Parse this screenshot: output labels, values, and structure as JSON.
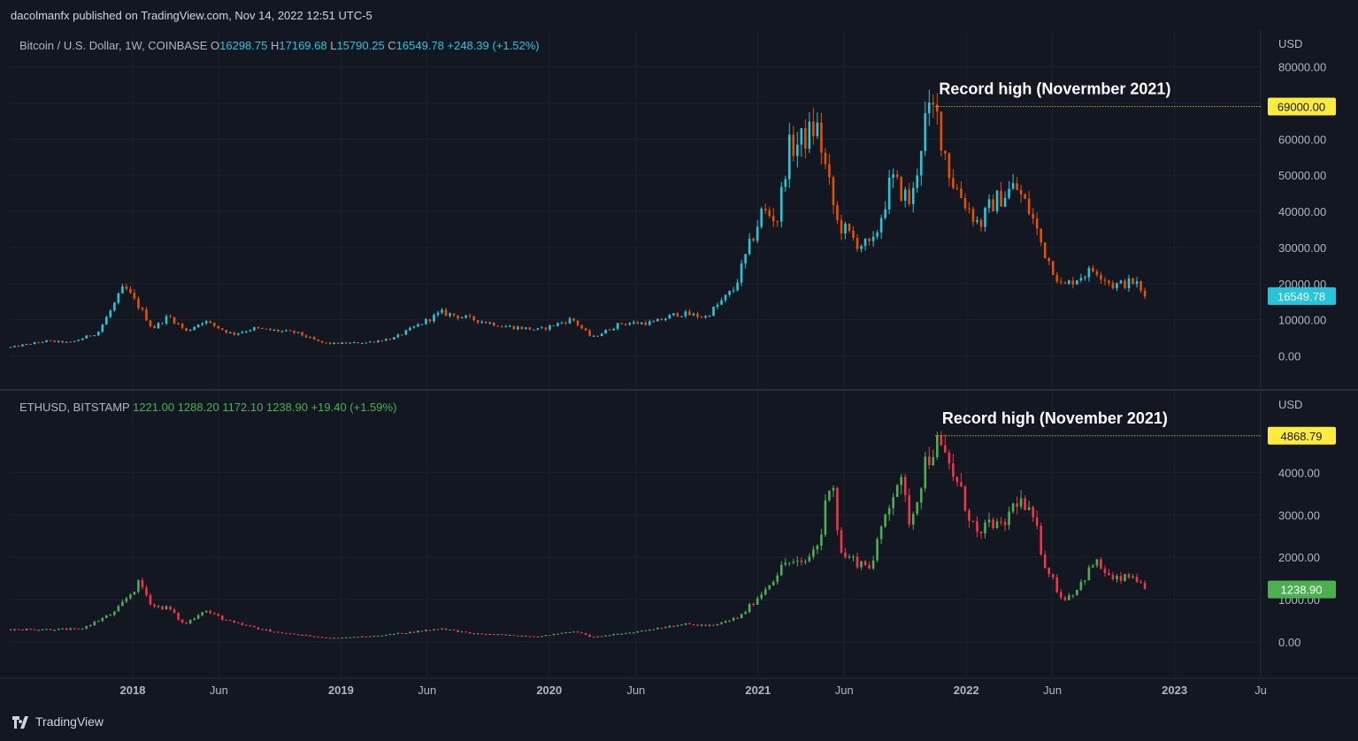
{
  "header": {
    "publisher_text": "dacolmanfx published on TradingView.com, Nov 14, 2022 12:51 UTC-5"
  },
  "footer": {
    "brand": "TradingView"
  },
  "colors": {
    "background": "#131722",
    "btc_up": "#26c6da",
    "btc_down": "#e65100",
    "eth_up": "#4caf50",
    "eth_down": "#f23645",
    "record_label_bg": "#ffeb3b",
    "axis_text": "#b2b5be"
  },
  "chart_data": [
    {
      "type": "candlestick",
      "title": "Bitcoin / U.S. Dollar, 1W, COINBASE",
      "ohlc_legend": {
        "o_prefix": "O",
        "open": "16298.75",
        "h_prefix": "H",
        "high": "17169.68",
        "l_prefix": "L",
        "low": "15790.25",
        "c_prefix": "C",
        "close": "16549.78",
        "change": "+248.39 (+1.52%)"
      },
      "currency": "USD",
      "y_ticks": [
        "80000.00",
        "70000.00",
        "60000.00",
        "50000.00",
        "40000.00",
        "30000.00",
        "20000.00",
        "10000.00",
        "0.00"
      ],
      "y_tick_values": [
        80000,
        70000,
        60000,
        50000,
        40000,
        30000,
        20000,
        10000,
        0
      ],
      "ylim": [
        0,
        80000
      ],
      "record_high": {
        "value": 69000,
        "label": "69000.00",
        "annotation": "Record high (Novermber 2021)",
        "date": "2021-11-08"
      },
      "last_price": {
        "value": 16549.78,
        "label": "16549.78"
      },
      "series": [
        {
          "date": "2017-06-01",
          "close": 2400
        },
        {
          "date": "2017-08-01",
          "close": 4100
        },
        {
          "date": "2017-09-15",
          "close": 3700
        },
        {
          "date": "2017-11-01",
          "close": 6500
        },
        {
          "date": "2017-12-17",
          "close": 19000
        },
        {
          "date": "2018-01-15",
          "close": 13000
        },
        {
          "date": "2018-02-05",
          "close": 7500
        },
        {
          "date": "2018-03-05",
          "close": 11000
        },
        {
          "date": "2018-04-05",
          "close": 6800
        },
        {
          "date": "2018-05-05",
          "close": 9700
        },
        {
          "date": "2018-06-25",
          "close": 6000
        },
        {
          "date": "2018-08-01",
          "close": 7600
        },
        {
          "date": "2018-10-15",
          "close": 6400
        },
        {
          "date": "2018-11-26",
          "close": 3700
        },
        {
          "date": "2018-12-15",
          "close": 3400
        },
        {
          "date": "2019-02-15",
          "close": 3700
        },
        {
          "date": "2019-04-05",
          "close": 5000
        },
        {
          "date": "2019-06-26",
          "close": 12000
        },
        {
          "date": "2019-08-15",
          "close": 10300
        },
        {
          "date": "2019-10-15",
          "close": 8200
        },
        {
          "date": "2019-12-15",
          "close": 7200
        },
        {
          "date": "2020-02-10",
          "close": 10200
        },
        {
          "date": "2020-03-16",
          "close": 5000
        },
        {
          "date": "2020-05-05",
          "close": 9000
        },
        {
          "date": "2020-07-01",
          "close": 9200
        },
        {
          "date": "2020-08-15",
          "close": 11800
        },
        {
          "date": "2020-10-01",
          "close": 10800
        },
        {
          "date": "2020-11-20",
          "close": 18500
        },
        {
          "date": "2021-01-08",
          "close": 40000
        },
        {
          "date": "2021-02-05",
          "close": 38000
        },
        {
          "date": "2021-02-22",
          "close": 57000
        },
        {
          "date": "2021-03-15",
          "close": 59000
        },
        {
          "date": "2021-04-14",
          "close": 63500
        },
        {
          "date": "2021-05-19",
          "close": 37000
        },
        {
          "date": "2021-06-22",
          "close": 31500
        },
        {
          "date": "2021-07-20",
          "close": 30000
        },
        {
          "date": "2021-08-23",
          "close": 49000
        },
        {
          "date": "2021-09-27",
          "close": 42000
        },
        {
          "date": "2021-10-20",
          "close": 65000
        },
        {
          "date": "2021-11-08",
          "close": 68000
        },
        {
          "date": "2021-12-05",
          "close": 49000
        },
        {
          "date": "2022-01-24",
          "close": 36000
        },
        {
          "date": "2022-02-14",
          "close": 42000
        },
        {
          "date": "2022-03-28",
          "close": 47000
        },
        {
          "date": "2022-04-25",
          "close": 39000
        },
        {
          "date": "2022-05-16",
          "close": 29500
        },
        {
          "date": "2022-06-18",
          "close": 19000
        },
        {
          "date": "2022-07-18",
          "close": 22000
        },
        {
          "date": "2022-08-15",
          "close": 24000
        },
        {
          "date": "2022-09-15",
          "close": 19500
        },
        {
          "date": "2022-10-25",
          "close": 20500
        },
        {
          "date": "2022-11-07",
          "close": 16500
        },
        {
          "date": "2022-11-14",
          "close": 16549
        }
      ]
    },
    {
      "type": "candlestick",
      "title": "ETHUSD, BITSTAMP",
      "ohlc_legend": {
        "open": "1221.00",
        "high": "1288.20",
        "low": "1172.10",
        "close": "1238.90",
        "change": "+19.40 (+1.59%)"
      },
      "currency": "USD",
      "y_ticks": [
        "4000.00",
        "3000.00",
        "2000.00",
        "1000.00",
        "0.00"
      ],
      "y_tick_values": [
        4000,
        3000,
        2000,
        1000,
        0
      ],
      "ylim": [
        -500,
        5000
      ],
      "record_high": {
        "value": 4868.79,
        "label": "4868.79",
        "annotation": "Record high (November 2021)",
        "date": "2021-11-08"
      },
      "last_price": {
        "value": 1238.9,
        "label": "1238.90"
      },
      "series": [
        {
          "date": "2017-06-01",
          "close": 300
        },
        {
          "date": "2017-08-01",
          "close": 300
        },
        {
          "date": "2017-10-01",
          "close": 300
        },
        {
          "date": "2017-12-01",
          "close": 700
        },
        {
          "date": "2018-01-13",
          "close": 1400
        },
        {
          "date": "2018-02-05",
          "close": 850
        },
        {
          "date": "2018-03-05",
          "close": 800
        },
        {
          "date": "2018-04-01",
          "close": 400
        },
        {
          "date": "2018-05-05",
          "close": 750
        },
        {
          "date": "2018-06-25",
          "close": 450
        },
        {
          "date": "2018-08-15",
          "close": 300
        },
        {
          "date": "2018-09-15",
          "close": 220
        },
        {
          "date": "2018-11-20",
          "close": 120
        },
        {
          "date": "2018-12-15",
          "close": 90
        },
        {
          "date": "2019-03-01",
          "close": 140
        },
        {
          "date": "2019-05-15",
          "close": 250
        },
        {
          "date": "2019-06-26",
          "close": 320
        },
        {
          "date": "2019-08-15",
          "close": 200
        },
        {
          "date": "2019-12-15",
          "close": 130
        },
        {
          "date": "2020-02-15",
          "close": 260
        },
        {
          "date": "2020-03-16",
          "close": 110
        },
        {
          "date": "2020-06-01",
          "close": 240
        },
        {
          "date": "2020-08-15",
          "close": 420
        },
        {
          "date": "2020-10-15",
          "close": 380
        },
        {
          "date": "2020-12-01",
          "close": 600
        },
        {
          "date": "2021-01-10",
          "close": 1200
        },
        {
          "date": "2021-02-20",
          "close": 1900
        },
        {
          "date": "2021-03-20",
          "close": 1800
        },
        {
          "date": "2021-04-20",
          "close": 2400
        },
        {
          "date": "2021-05-10",
          "close": 4200
        },
        {
          "date": "2021-05-24",
          "close": 2100
        },
        {
          "date": "2021-06-22",
          "close": 1900
        },
        {
          "date": "2021-07-20",
          "close": 1800
        },
        {
          "date": "2021-08-15",
          "close": 3200
        },
        {
          "date": "2021-09-05",
          "close": 3900
        },
        {
          "date": "2021-09-25",
          "close": 2800
        },
        {
          "date": "2021-10-20",
          "close": 4200
        },
        {
          "date": "2021-11-08",
          "close": 4700
        },
        {
          "date": "2021-12-05",
          "close": 4100
        },
        {
          "date": "2022-01-24",
          "close": 2400
        },
        {
          "date": "2022-02-14",
          "close": 2900
        },
        {
          "date": "2022-03-01",
          "close": 2600
        },
        {
          "date": "2022-04-01",
          "close": 3400
        },
        {
          "date": "2022-05-01",
          "close": 2800
        },
        {
          "date": "2022-05-16",
          "close": 1950
        },
        {
          "date": "2022-06-18",
          "close": 1000
        },
        {
          "date": "2022-07-11",
          "close": 1200
        },
        {
          "date": "2022-08-15",
          "close": 1900
        },
        {
          "date": "2022-09-15",
          "close": 1450
        },
        {
          "date": "2022-10-25",
          "close": 1550
        },
        {
          "date": "2022-11-07",
          "close": 1200
        },
        {
          "date": "2022-11-14",
          "close": 1238
        }
      ]
    }
  ],
  "time_axis": {
    "labels": [
      {
        "label": "2018",
        "date": "2018-01-01",
        "bold": true
      },
      {
        "label": "Jun",
        "date": "2018-06-01",
        "bold": false
      },
      {
        "label": "2019",
        "date": "2019-01-01",
        "bold": true
      },
      {
        "label": "Jun",
        "date": "2019-06-01",
        "bold": false
      },
      {
        "label": "2020",
        "date": "2020-01-01",
        "bold": true
      },
      {
        "label": "Jun",
        "date": "2020-06-01",
        "bold": false
      },
      {
        "label": "2021",
        "date": "2021-01-01",
        "bold": true
      },
      {
        "label": "Jun",
        "date": "2021-06-01",
        "bold": false
      },
      {
        "label": "2022",
        "date": "2022-01-01",
        "bold": true
      },
      {
        "label": "Jun",
        "date": "2022-06-01",
        "bold": false
      },
      {
        "label": "2023",
        "date": "2023-01-01",
        "bold": true
      },
      {
        "label": "Ju",
        "date": "2023-06-01",
        "bold": false
      }
    ],
    "range": [
      "2017-06-01",
      "2023-06-01"
    ]
  }
}
